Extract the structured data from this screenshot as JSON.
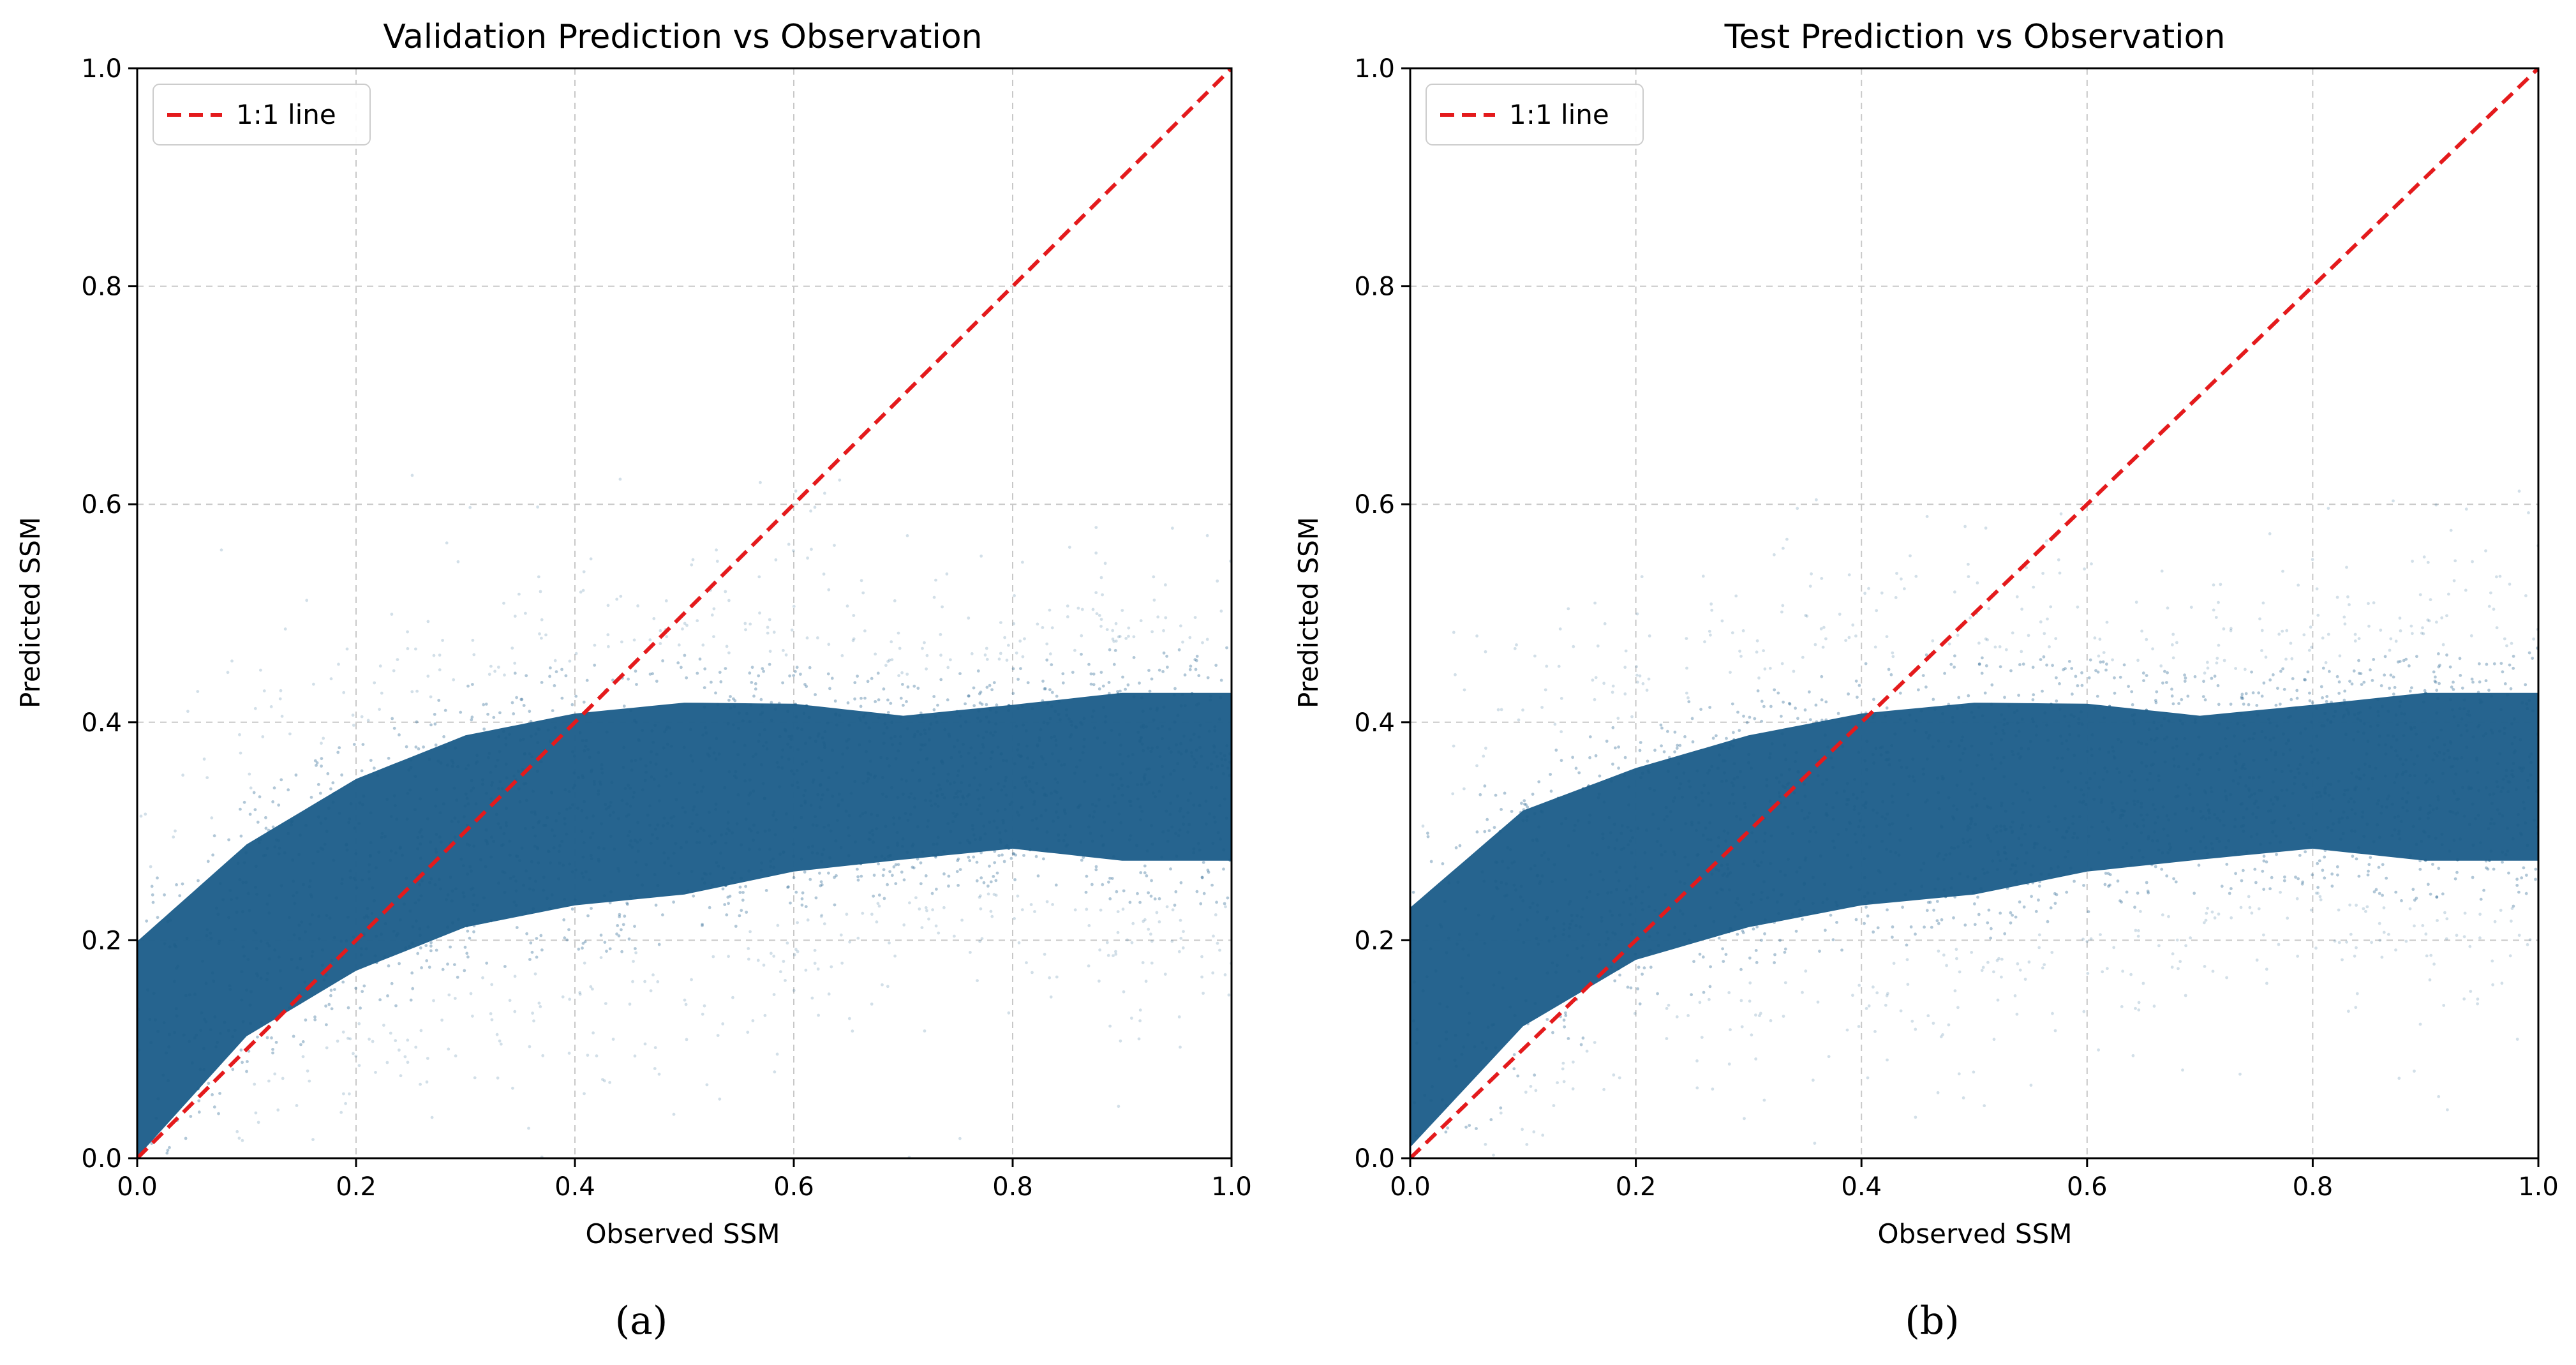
{
  "chart_data": [
    {
      "type": "scatter",
      "title": "Validation Prediction vs Observation",
      "xlabel": "Observed SSM",
      "ylabel": "Predicted SSM",
      "xlim": [
        0.0,
        1.0
      ],
      "ylim": [
        0.0,
        1.0
      ],
      "xticks": [
        "0.0",
        "0.2",
        "0.4",
        "0.6",
        "0.8",
        "1.0"
      ],
      "yticks": [
        "0.0",
        "0.2",
        "0.4",
        "0.6",
        "0.8",
        "1.0"
      ],
      "grid": true,
      "legend": {
        "placement": "top-left",
        "entries": [
          "1:1 line"
        ]
      },
      "reference_line": {
        "label": "1:1 line",
        "x": [
          0.0,
          1.0
        ],
        "y": [
          0.0,
          1.0
        ],
        "color": "#e41a1c",
        "style": "dashed"
      },
      "point_color": "#1f5f8b",
      "density_profile": {
        "x": [
          0.0,
          0.1,
          0.2,
          0.3,
          0.4,
          0.5,
          0.6,
          0.7,
          0.8,
          0.9,
          1.0
        ],
        "center": [
          0.1,
          0.2,
          0.26,
          0.3,
          0.32,
          0.33,
          0.34,
          0.34,
          0.35,
          0.35,
          0.35
        ],
        "spread": [
          0.09,
          0.08,
          0.08,
          0.08,
          0.08,
          0.08,
          0.07,
          0.06,
          0.06,
          0.07,
          0.07
        ],
        "approx_max_predicted": 0.64
      },
      "caption": "(a)"
    },
    {
      "type": "scatter",
      "title": "Test Prediction vs Observation",
      "xlabel": "Observed SSM",
      "ylabel": "Predicted SSM",
      "xlim": [
        0.0,
        1.0
      ],
      "ylim": [
        0.0,
        1.0
      ],
      "xticks": [
        "0.0",
        "0.2",
        "0.4",
        "0.6",
        "0.8",
        "1.0"
      ],
      "yticks": [
        "0.0",
        "0.2",
        "0.4",
        "0.6",
        "0.8",
        "1.0"
      ],
      "grid": true,
      "legend": {
        "placement": "top-left",
        "entries": [
          "1:1 line"
        ]
      },
      "reference_line": {
        "label": "1:1 line",
        "x": [
          0.0,
          1.0
        ],
        "y": [
          0.0,
          1.0
        ],
        "color": "#e41a1c",
        "style": "dashed"
      },
      "point_color": "#1f5f8b",
      "density_profile": {
        "x": [
          0.0,
          0.1,
          0.2,
          0.3,
          0.4,
          0.5,
          0.6,
          0.7,
          0.8,
          0.9,
          1.0
        ],
        "center": [
          0.12,
          0.22,
          0.27,
          0.3,
          0.32,
          0.33,
          0.34,
          0.34,
          0.35,
          0.35,
          0.35
        ],
        "spread": [
          0.1,
          0.09,
          0.08,
          0.08,
          0.08,
          0.08,
          0.07,
          0.06,
          0.06,
          0.07,
          0.07
        ],
        "approx_max_predicted": 0.64
      },
      "caption": "(b)"
    }
  ]
}
